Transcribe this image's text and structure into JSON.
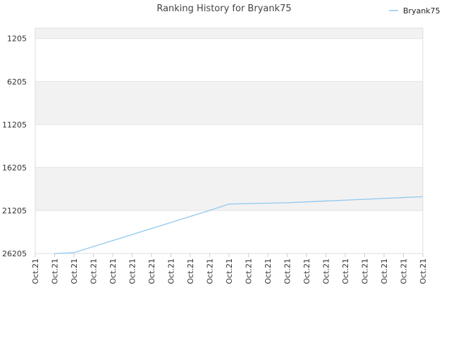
{
  "chart_data": {
    "type": "line",
    "title": "Ranking History for Bryank75",
    "xlabel": "",
    "ylabel": "",
    "y_inverted": true,
    "ylim": [
      26205,
      0
    ],
    "y_ticks": [
      1205,
      6205,
      11205,
      16205,
      21205,
      26205
    ],
    "x_ticks": [
      "Oct.21",
      "Oct.21",
      "Oct.21",
      "Oct.21",
      "Oct.21",
      "Oct.21",
      "Oct.21",
      "Oct.21",
      "Oct.21",
      "Oct.21",
      "Oct.21",
      "Oct.21",
      "Oct.21",
      "Oct.21",
      "Oct.21",
      "Oct.21",
      "Oct.21",
      "Oct.21",
      "Oct.21",
      "Oct.21",
      "Oct.21"
    ],
    "legend_position": "top-right",
    "grid": true,
    "series": [
      {
        "name": "Bryank75",
        "color": "#90c8f0",
        "x": [
          1,
          2,
          3,
          4,
          5,
          6,
          7,
          8,
          9,
          10,
          11,
          12,
          13,
          14,
          15,
          16,
          17,
          18,
          19,
          20
        ],
        "values": [
          26205,
          26100,
          25400,
          24700,
          24000,
          23300,
          22600,
          21900,
          21200,
          20450,
          20400,
          20350,
          20300,
          20200,
          20100,
          20000,
          19900,
          19800,
          19700,
          19600
        ]
      }
    ]
  }
}
